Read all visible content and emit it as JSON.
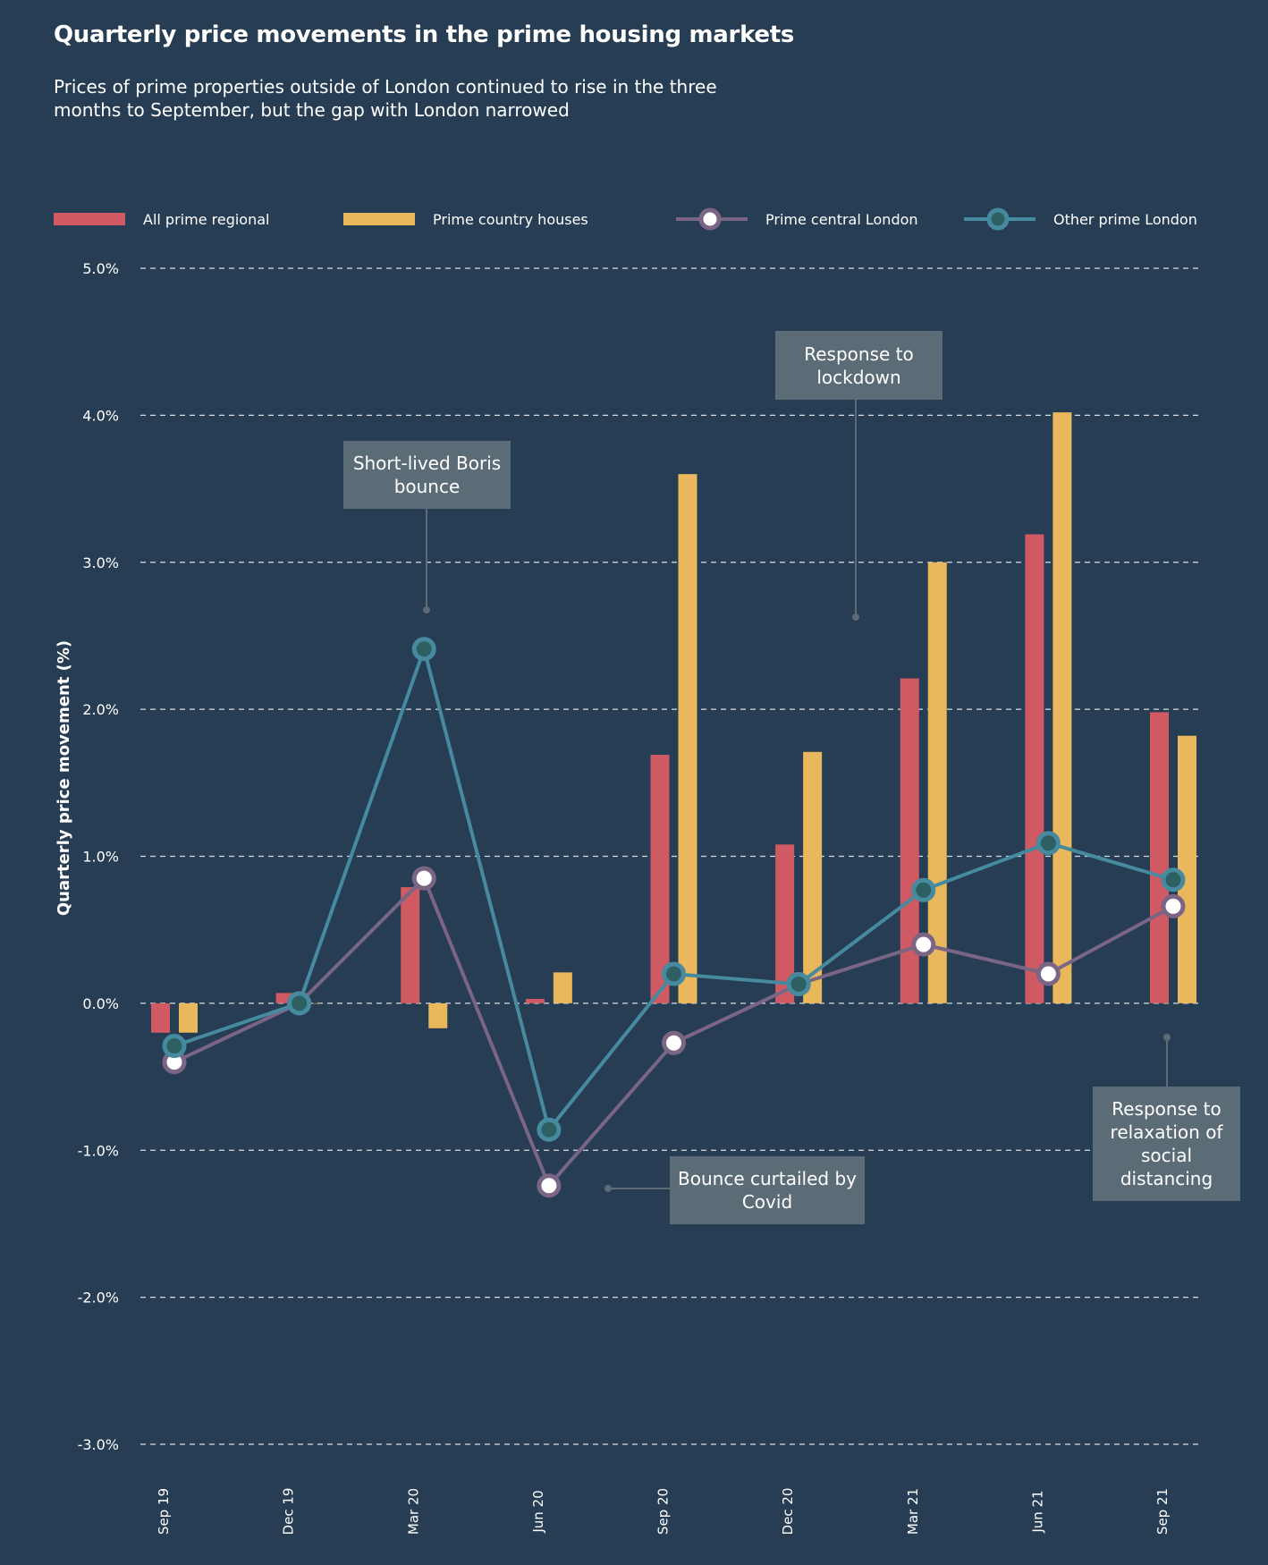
{
  "header": {
    "title": "Quarterly price movements in the prime housing markets",
    "subtitle": "Prices of prime properties outside of London continued to rise in the three months to September, but the gap with London narrowed"
  },
  "colors": {
    "background": "#273d54",
    "all_prime_regional": "#d05a63",
    "prime_country_houses": "#e9b75c",
    "prime_central_london": "#7a6585",
    "other_prime_london": "#458a9e",
    "other_prime_london_fill": "#2e5f62",
    "annotation_box": "#5c6c76"
  },
  "legend": [
    {
      "label": "All prime regional",
      "type": "bar",
      "color_key": "all_prime_regional"
    },
    {
      "label": "Prime country houses",
      "type": "bar",
      "color_key": "prime_country_houses"
    },
    {
      "label": "Prime central London",
      "type": "line",
      "color_key": "prime_central_london"
    },
    {
      "label": "Other prime London",
      "type": "line",
      "color_key": "other_prime_london"
    }
  ],
  "annotations": [
    {
      "text": "Short-lived Boris bounce"
    },
    {
      "text": "Response to lockdown"
    },
    {
      "text": "Bounce curtailed by Covid"
    },
    {
      "text": "Response to relaxation of social distancing"
    }
  ],
  "chart_data": {
    "type": "bar",
    "title": "Quarterly price movements in the prime housing markets",
    "xlabel": "",
    "ylabel": "Quarterly price movement  (%)",
    "ylim": [
      -3.0,
      5.0
    ],
    "yticks": [
      5.0,
      4.0,
      3.0,
      2.0,
      1.0,
      0.0,
      -1.0,
      -2.0,
      -3.0
    ],
    "ytick_labels": [
      "5.0%",
      "4.0%",
      "3.0%",
      "2.0%",
      "1.0%",
      "0.0%",
      "-1.0%",
      "-2.0%",
      "-3.0%"
    ],
    "grid": true,
    "legend_position": "top",
    "categories": [
      "Sep 19",
      "Dec 19",
      "Mar 20",
      "Jun 20",
      "Sep 20",
      "Dec 20",
      "Mar 21",
      "Jun 21",
      "Sep 21"
    ],
    "series": [
      {
        "name": "All prime regional",
        "kind": "bar",
        "values": [
          -0.2,
          0.07,
          0.79,
          0.03,
          1.69,
          1.08,
          2.21,
          3.19,
          1.98
        ]
      },
      {
        "name": "Prime country houses",
        "kind": "bar",
        "values": [
          -0.2,
          0.0,
          -0.17,
          0.21,
          3.6,
          1.71,
          3.0,
          4.02,
          1.82
        ]
      },
      {
        "name": "Prime central London",
        "kind": "line",
        "values": [
          -0.4,
          0.0,
          0.85,
          -1.24,
          -0.27,
          0.13,
          0.4,
          0.2,
          0.66
        ]
      },
      {
        "name": "Other prime London",
        "kind": "line",
        "values": [
          -0.29,
          0.0,
          2.41,
          -0.86,
          0.2,
          0.13,
          0.77,
          1.09,
          0.84
        ]
      }
    ],
    "annotations": [
      {
        "text": "Short-lived Boris bounce",
        "category": "Mar 20"
      },
      {
        "text": "Response to lockdown",
        "category": "Dec 20"
      },
      {
        "text": "Bounce curtailed by Covid",
        "category": "Jun 20"
      },
      {
        "text": "Response to relaxation of social distancing",
        "category": "Sep 21"
      }
    ]
  }
}
